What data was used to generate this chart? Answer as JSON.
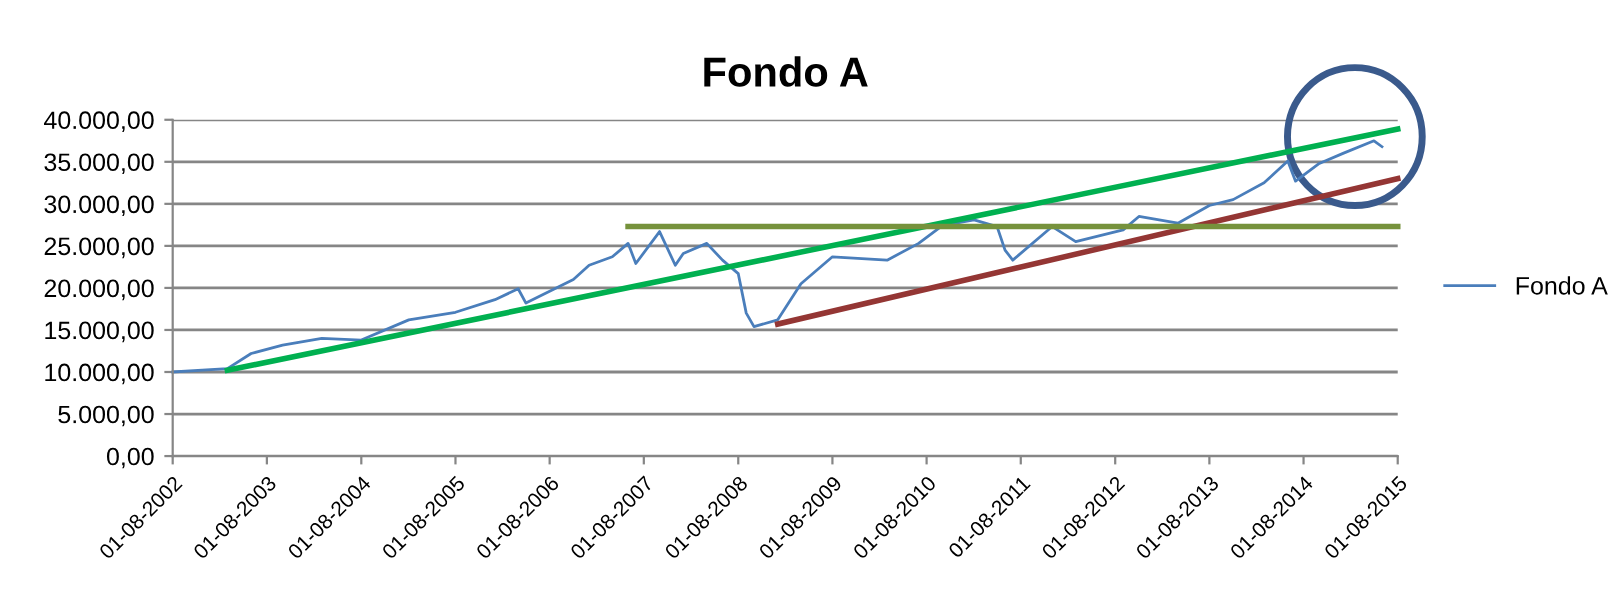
{
  "chart_data": {
    "type": "line",
    "title": "Fondo A",
    "x": [
      "2002-08",
      "2003-03",
      "2003-06",
      "2003-10",
      "2004-03",
      "2004-08",
      "2005-02",
      "2005-08",
      "2006-01",
      "2006-04",
      "2006-05",
      "2006-11",
      "2007-01",
      "2007-04",
      "2007-06",
      "2007-07",
      "2007-10",
      "2007-12",
      "2008-01",
      "2008-04",
      "2008-06",
      "2008-08",
      "2008-09",
      "2008-10",
      "2009-01",
      "2009-04",
      "2009-08",
      "2010-03",
      "2010-07",
      "2010-10",
      "2011-02",
      "2011-05",
      "2011-06",
      "2011-07",
      "2011-12",
      "2012-03",
      "2012-09",
      "2012-11",
      "2013-04",
      "2013-08",
      "2013-11",
      "2014-03",
      "2014-06",
      "2014-07",
      "2014-10",
      "2015-01",
      "2015-05",
      "2015-06"
    ],
    "series": [
      {
        "name": "Fondo A",
        "color": "#4a7ebb",
        "values": [
          10000,
          10400,
          12200,
          13200,
          14000,
          13800,
          16200,
          17100,
          18600,
          19900,
          18200,
          21000,
          22700,
          23700,
          25300,
          22900,
          26700,
          22700,
          24100,
          25300,
          23300,
          21700,
          17000,
          15400,
          16200,
          20500,
          23700,
          23300,
          25300,
          27400,
          28100,
          27300,
          24500,
          23300,
          27300,
          25500,
          26900,
          28500,
          27700,
          29800,
          30500,
          32500,
          35100,
          32700,
          34800,
          36000,
          37500,
          36800
        ]
      },
      {
        "type": "line",
        "color": "#00b050",
        "x": [
          "2003-03",
          "2015-08"
        ],
        "values": [
          10200,
          38900
        ]
      },
      {
        "type": "line",
        "color": "#943634",
        "x": [
          "2009-01",
          "2015-08"
        ],
        "values": [
          15700,
          33000
        ]
      },
      {
        "type": "line",
        "color": "#76923c",
        "x": [
          "2007-06",
          "2015-08"
        ],
        "values": [
          27300,
          27300
        ]
      }
    ],
    "xlim": [
      "2002-08-01",
      "2015-08-01"
    ],
    "xticks": [
      {
        "value": "2002-08-01",
        "label": "01-08-2002"
      },
      {
        "value": "2003-08-01",
        "label": "01-08-2003"
      },
      {
        "value": "2004-08-01",
        "label": "01-08-2004"
      },
      {
        "value": "2005-08-01",
        "label": "01-08-2005"
      },
      {
        "value": "2006-08-01",
        "label": "01-08-2006"
      },
      {
        "value": "2007-08-01",
        "label": "01-08-2007"
      },
      {
        "value": "2008-08-01",
        "label": "01-08-2008"
      },
      {
        "value": "2009-08-01",
        "label": "01-08-2009"
      },
      {
        "value": "2010-08-01",
        "label": "01-08-2010"
      },
      {
        "value": "2011-08-01",
        "label": "01-08-2011"
      },
      {
        "value": "2012-08-01",
        "label": "01-08-2012"
      },
      {
        "value": "2013-08-01",
        "label": "01-08-2013"
      },
      {
        "value": "2014-08-01",
        "label": "01-08-2014"
      },
      {
        "value": "2015-08-01",
        "label": "01-08-2015"
      }
    ],
    "ylim": [
      0,
      40000
    ],
    "yticks": [
      {
        "value": 0,
        "label": "0,00"
      },
      {
        "value": 5000,
        "label": "5.000,00"
      },
      {
        "value": 10000,
        "label": "10.000,00"
      },
      {
        "value": 15000,
        "label": "15.000,00"
      },
      {
        "value": 20000,
        "label": "20.000,00"
      },
      {
        "value": 25000,
        "label": "25.000,00"
      },
      {
        "value": 30000,
        "label": "30.000,00"
      },
      {
        "value": 35000,
        "label": "35.000,00"
      },
      {
        "value": 40000,
        "label": "40.000,00"
      }
    ],
    "grid": "y",
    "legend": "right",
    "marker": "none",
    "line_style": "solid"
  }
}
